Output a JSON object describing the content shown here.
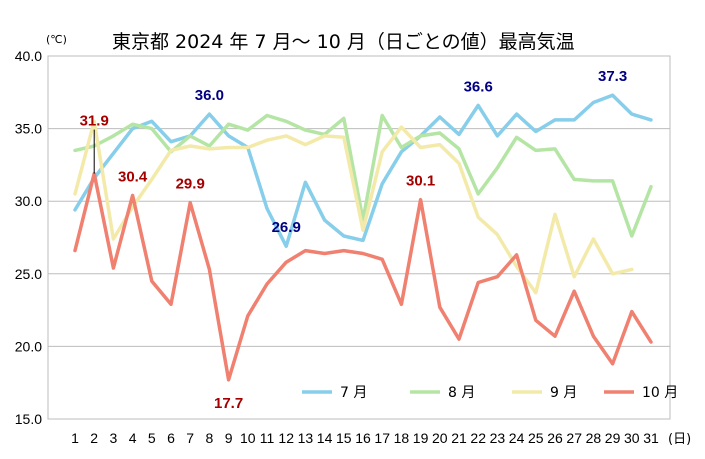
{
  "chart_data": {
    "type": "line",
    "title": "東京都 2024 年 7 月～ 10 月（日ごとの値）最高気温",
    "yunit": "(℃)",
    "xunit": "(日)",
    "ylim": [
      15.0,
      40.0
    ],
    "yticks": [
      "40.0",
      "35.0",
      "30.0",
      "25.0",
      "20.0",
      "15.0"
    ],
    "x": [
      "1",
      "2",
      "3",
      "4",
      "5",
      "6",
      "7",
      "8",
      "9",
      "10",
      "11",
      "12",
      "13",
      "14",
      "15",
      "16",
      "17",
      "18",
      "19",
      "20",
      "21",
      "22",
      "23",
      "24",
      "25",
      "26",
      "27",
      "28",
      "29",
      "30",
      "31"
    ],
    "grid": true,
    "legend_position": "bottom-right",
    "series": [
      {
        "name": "7 月",
        "color": "#87CEEB",
        "values": [
          29.4,
          31.6,
          33.3,
          35.0,
          35.5,
          34.1,
          34.5,
          36.0,
          34.5,
          33.7,
          29.5,
          26.9,
          31.3,
          28.7,
          27.6,
          27.3,
          31.2,
          33.4,
          34.5,
          35.8,
          34.6,
          36.6,
          34.5,
          36.0,
          34.8,
          35.6,
          35.6,
          36.8,
          37.3,
          36.0,
          35.6
        ]
      },
      {
        "name": "8 月",
        "color": "#B5E5A4",
        "values": [
          33.5,
          33.8,
          34.5,
          35.3,
          35.0,
          33.4,
          34.5,
          33.8,
          35.3,
          34.9,
          35.9,
          35.5,
          34.9,
          34.6,
          35.7,
          28.7,
          35.9,
          33.7,
          34.5,
          34.7,
          33.6,
          30.5,
          32.3,
          34.4,
          33.5,
          33.6,
          31.5,
          31.4,
          31.4,
          27.6,
          31.0
        ]
      },
      {
        "name": "9 月",
        "color": "#F3EAAA",
        "values": [
          30.5,
          35.5,
          27.4,
          29.6,
          31.5,
          33.5,
          33.8,
          33.6,
          33.7,
          33.7,
          34.2,
          34.5,
          33.9,
          34.5,
          34.4,
          28.0,
          33.4,
          35.1,
          33.7,
          33.9,
          32.6,
          28.9,
          27.7,
          25.5,
          23.7,
          29.1,
          24.8,
          27.4,
          25.0,
          25.3,
          null
        ]
      },
      {
        "name": "10 月",
        "color": "#F08070",
        "values": [
          26.6,
          31.9,
          25.4,
          30.4,
          24.5,
          22.9,
          29.9,
          25.3,
          17.7,
          22.1,
          24.3,
          25.8,
          26.6,
          26.4,
          26.6,
          26.4,
          26.0,
          22.9,
          30.1,
          22.7,
          20.5,
          24.4,
          24.8,
          26.3,
          21.8,
          20.7,
          23.8,
          20.7,
          18.8,
          22.4,
          20.3
        ]
      }
    ],
    "annotations": [
      {
        "text": "31.9",
        "series": 3,
        "day": 2,
        "color": "#A50000",
        "leader": true
      },
      {
        "text": "30.4",
        "series": 3,
        "day": 4,
        "color": "#A50000"
      },
      {
        "text": "29.9",
        "series": 3,
        "day": 7,
        "color": "#A50000"
      },
      {
        "text": "17.7",
        "series": 3,
        "day": 9,
        "color": "#A50000",
        "below": true
      },
      {
        "text": "30.1",
        "series": 3,
        "day": 19,
        "color": "#A50000"
      },
      {
        "text": "36.0",
        "series": 0,
        "day": 8,
        "color": "#000080"
      },
      {
        "text": "26.9",
        "series": 0,
        "day": 12,
        "color": "#000080"
      },
      {
        "text": "36.6",
        "series": 0,
        "day": 22,
        "color": "#000080"
      },
      {
        "text": "37.3",
        "series": 0,
        "day": 29,
        "color": "#000080"
      }
    ]
  }
}
